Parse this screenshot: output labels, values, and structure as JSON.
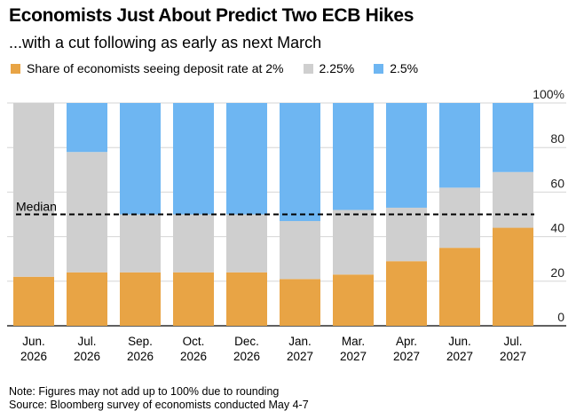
{
  "header": {
    "title": "Economists Just About Predict Two ECB Hikes",
    "subtitle": "...with a cut following as early as next March"
  },
  "legend": [
    {
      "label": "Share of economists seeing deposit rate at 2%",
      "color": "#E8A445"
    },
    {
      "label": "2.25%",
      "color": "#CFCFCF"
    },
    {
      "label": "2.5%",
      "color": "#6EB6F2"
    }
  ],
  "chart_data": {
    "type": "bar",
    "stacked": true,
    "categories": [
      [
        "Jun.",
        "2026"
      ],
      [
        "Jul.",
        "2026"
      ],
      [
        "Sep.",
        "2026"
      ],
      [
        "Oct.",
        "2026"
      ],
      [
        "Dec.",
        "2026"
      ],
      [
        "Jan.",
        "2027"
      ],
      [
        "Mar.",
        "2027"
      ],
      [
        "Apr.",
        "2027"
      ],
      [
        "Jun.",
        "2027"
      ],
      [
        "Jul.",
        "2027"
      ]
    ],
    "series": [
      {
        "name": "Share of economists seeing deposit rate at 2%",
        "color": "#E8A445",
        "values": [
          22,
          24,
          24,
          24,
          24,
          21,
          23,
          29,
          35,
          44
        ]
      },
      {
        "name": "2.25%",
        "color": "#CFCFCF",
        "values": [
          78,
          54,
          26,
          26,
          26,
          26,
          29,
          24,
          27,
          25
        ]
      },
      {
        "name": "2.5%",
        "color": "#6EB6F2",
        "values": [
          0,
          22,
          50,
          50,
          50,
          53,
          48,
          47,
          38,
          31
        ]
      }
    ],
    "yticks": [
      "100%",
      "80",
      "60",
      "40",
      "20",
      "0"
    ],
    "ylim": [
      0,
      100
    ],
    "median": {
      "label": "Median",
      "value": 50
    },
    "grid": true
  },
  "notes": {
    "note": "Note: Figures may not add up to 100% due to rounding",
    "source": "Source: Bloomberg survey of economists conducted May 4-7"
  }
}
